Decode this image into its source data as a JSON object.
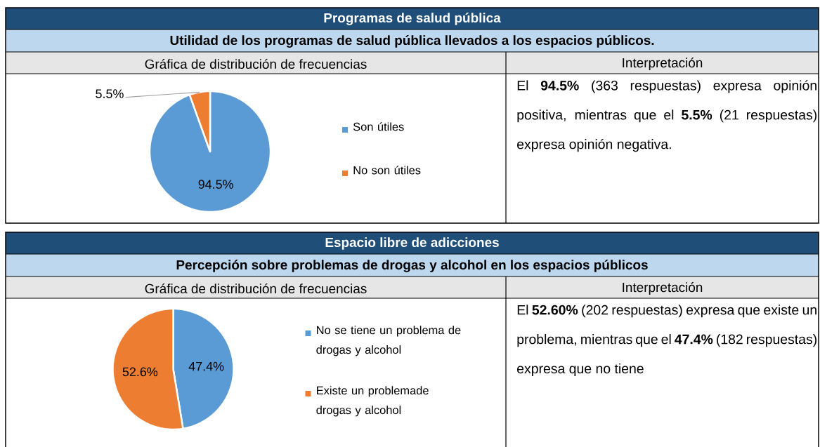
{
  "chart_data": [
    {
      "type": "pie",
      "title": "Programas de salud pública",
      "subtitle": "Utilidad de los programas de salud pública llevados a los espacios públicos.",
      "categories": [
        "Son útiles",
        "No son útiles"
      ],
      "values": [
        94.5,
        5.5
      ],
      "colors": [
        "#5b9bd5",
        "#ed7d31"
      ],
      "value_labels": [
        "94.5%",
        "5.5%"
      ],
      "legend": "right",
      "annotations": [
        "Gráfica de distribución de frecuencias",
        "Interpretación",
        "El **94.5%** (363 respuestas) expresa opinión positiva, mientras que el **5.5%** (21 respuestas) expresa opinión negativa."
      ]
    },
    {
      "type": "pie",
      "title": "Espacio libre de adicciones",
      "subtitle": "Percepción sobre problemas de drogas y alcohol en los espacios públicos",
      "categories": [
        "No se tiene un problema de drogas y alcohol",
        "Existe un problemade drogas y alcohol"
      ],
      "values": [
        47.4,
        52.6
      ],
      "colors": [
        "#5b9bd5",
        "#ed7d31"
      ],
      "value_labels": [
        "47.4%",
        "52.6%"
      ],
      "legend": "right",
      "annotations": [
        "Gráfica de distribución de frecuencias",
        "Interpretación",
        "El **52.60%** (202 respuestas) expresa que existe un problema, mientras que el **47.4%** (182 respuestas) expresa que no tiene"
      ]
    }
  ]
}
